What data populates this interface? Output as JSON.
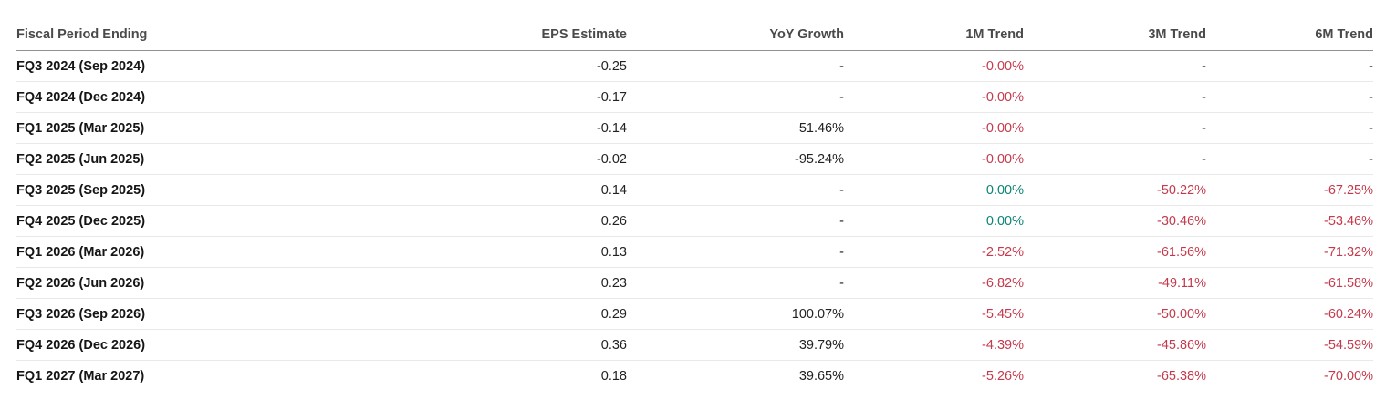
{
  "colors": {
    "negative": "#c43a4c",
    "positive": "#0b8476",
    "header_text": "#4a4a4a",
    "period_text": "#151515",
    "value_text": "#222222",
    "header_rule": "#919191",
    "row_rule": "#e9e9e9",
    "background": "#ffffff"
  },
  "table": {
    "columns": [
      {
        "label": "Fiscal Period Ending"
      },
      {
        "label": "EPS Estimate"
      },
      {
        "label": "YoY Growth"
      },
      {
        "label": "1M Trend"
      },
      {
        "label": "3M Trend"
      },
      {
        "label": "6M Trend"
      }
    ],
    "rows": [
      {
        "period": "FQ3 2024 (Sep 2024)",
        "cells": [
          {
            "text": "-0.25",
            "tone": "neutral"
          },
          {
            "text": "-",
            "tone": "neutral"
          },
          {
            "text": "-0.00%",
            "tone": "red"
          },
          {
            "text": "-",
            "tone": "neutral"
          },
          {
            "text": "-",
            "tone": "neutral"
          }
        ]
      },
      {
        "period": "FQ4 2024 (Dec 2024)",
        "cells": [
          {
            "text": "-0.17",
            "tone": "neutral"
          },
          {
            "text": "-",
            "tone": "neutral"
          },
          {
            "text": "-0.00%",
            "tone": "red"
          },
          {
            "text": "-",
            "tone": "neutral"
          },
          {
            "text": "-",
            "tone": "neutral"
          }
        ]
      },
      {
        "period": "FQ1 2025 (Mar 2025)",
        "cells": [
          {
            "text": "-0.14",
            "tone": "neutral"
          },
          {
            "text": "51.46%",
            "tone": "neutral"
          },
          {
            "text": "-0.00%",
            "tone": "red"
          },
          {
            "text": "-",
            "tone": "neutral"
          },
          {
            "text": "-",
            "tone": "neutral"
          }
        ]
      },
      {
        "period": "FQ2 2025 (Jun 2025)",
        "cells": [
          {
            "text": "-0.02",
            "tone": "neutral"
          },
          {
            "text": "-95.24%",
            "tone": "neutral"
          },
          {
            "text": "-0.00%",
            "tone": "red"
          },
          {
            "text": "-",
            "tone": "neutral"
          },
          {
            "text": "-",
            "tone": "neutral"
          }
        ]
      },
      {
        "period": "FQ3 2025 (Sep 2025)",
        "cells": [
          {
            "text": "0.14",
            "tone": "neutral"
          },
          {
            "text": "-",
            "tone": "neutral"
          },
          {
            "text": "0.00%",
            "tone": "green"
          },
          {
            "text": "-50.22%",
            "tone": "red"
          },
          {
            "text": "-67.25%",
            "tone": "red"
          }
        ]
      },
      {
        "period": "FQ4 2025 (Dec 2025)",
        "cells": [
          {
            "text": "0.26",
            "tone": "neutral"
          },
          {
            "text": "-",
            "tone": "neutral"
          },
          {
            "text": "0.00%",
            "tone": "green"
          },
          {
            "text": "-30.46%",
            "tone": "red"
          },
          {
            "text": "-53.46%",
            "tone": "red"
          }
        ]
      },
      {
        "period": "FQ1 2026 (Mar 2026)",
        "cells": [
          {
            "text": "0.13",
            "tone": "neutral"
          },
          {
            "text": "-",
            "tone": "neutral"
          },
          {
            "text": "-2.52%",
            "tone": "red"
          },
          {
            "text": "-61.56%",
            "tone": "red"
          },
          {
            "text": "-71.32%",
            "tone": "red"
          }
        ]
      },
      {
        "period": "FQ2 2026 (Jun 2026)",
        "cells": [
          {
            "text": "0.23",
            "tone": "neutral"
          },
          {
            "text": "-",
            "tone": "neutral"
          },
          {
            "text": "-6.82%",
            "tone": "red"
          },
          {
            "text": "-49.11%",
            "tone": "red"
          },
          {
            "text": "-61.58%",
            "tone": "red"
          }
        ]
      },
      {
        "period": "FQ3 2026 (Sep 2026)",
        "cells": [
          {
            "text": "0.29",
            "tone": "neutral"
          },
          {
            "text": "100.07%",
            "tone": "neutral"
          },
          {
            "text": "-5.45%",
            "tone": "red"
          },
          {
            "text": "-50.00%",
            "tone": "red"
          },
          {
            "text": "-60.24%",
            "tone": "red"
          }
        ]
      },
      {
        "period": "FQ4 2026 (Dec 2026)",
        "cells": [
          {
            "text": "0.36",
            "tone": "neutral"
          },
          {
            "text": "39.79%",
            "tone": "neutral"
          },
          {
            "text": "-4.39%",
            "tone": "red"
          },
          {
            "text": "-45.86%",
            "tone": "red"
          },
          {
            "text": "-54.59%",
            "tone": "red"
          }
        ]
      },
      {
        "period": "FQ1 2027 (Mar 2027)",
        "cells": [
          {
            "text": "0.18",
            "tone": "neutral"
          },
          {
            "text": "39.65%",
            "tone": "neutral"
          },
          {
            "text": "-5.26%",
            "tone": "red"
          },
          {
            "text": "-65.38%",
            "tone": "red"
          },
          {
            "text": "-70.00%",
            "tone": "red"
          }
        ]
      }
    ]
  }
}
